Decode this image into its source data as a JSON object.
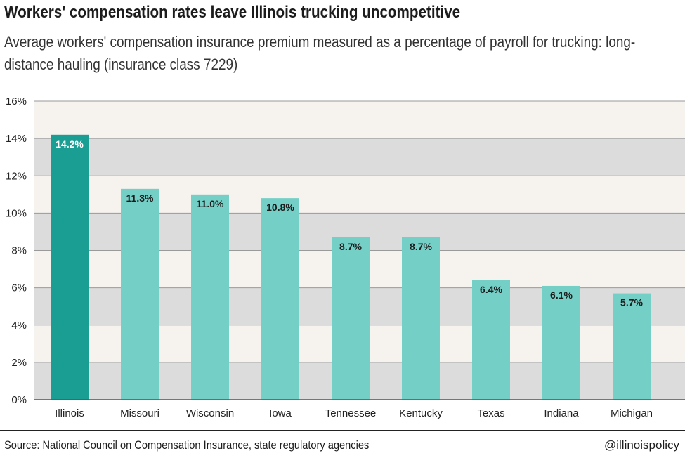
{
  "chart_data": {
    "type": "bar",
    "title": "Workers' compensation rates leave Illinois trucking uncompetitive",
    "subtitle": "Average workers' compensation insurance premium measured as a percentage of payroll for trucking: long-distance hauling (insurance class 7229)",
    "categories": [
      "Illinois",
      "Missouri",
      "Wisconsin",
      "Iowa",
      "Tennessee",
      "Kentucky",
      "Texas",
      "Indiana",
      "Michigan"
    ],
    "values": [
      14.2,
      11.3,
      11.0,
      10.8,
      8.7,
      8.7,
      6.4,
      6.1,
      5.7
    ],
    "data_labels": [
      "14.2%",
      "11.3%",
      "11.0%",
      "10.8%",
      "8.7%",
      "8.7%",
      "6.4%",
      "6.1%",
      "5.7%"
    ],
    "ylim": [
      0,
      16
    ],
    "y_ticks": [
      0,
      2,
      4,
      6,
      8,
      10,
      12,
      14,
      16
    ],
    "y_tick_labels": [
      "0%",
      "2%",
      "4%",
      "6%",
      "8%",
      "10%",
      "12%",
      "14%",
      "16%"
    ],
    "xlabel": "",
    "ylabel": "",
    "grid": true,
    "colors": {
      "highlight_bar": "#1a9e94",
      "bar": "#74cfc7",
      "band_dark": "#dcdcdc",
      "band_light": "#f6f2ee",
      "highlight_label": "#ffffff",
      "label": "#1c1c1c"
    }
  },
  "footer": {
    "source": "Source: National Council on Compensation Insurance, state regulatory agencies",
    "handle": "@illinoispolicy"
  }
}
